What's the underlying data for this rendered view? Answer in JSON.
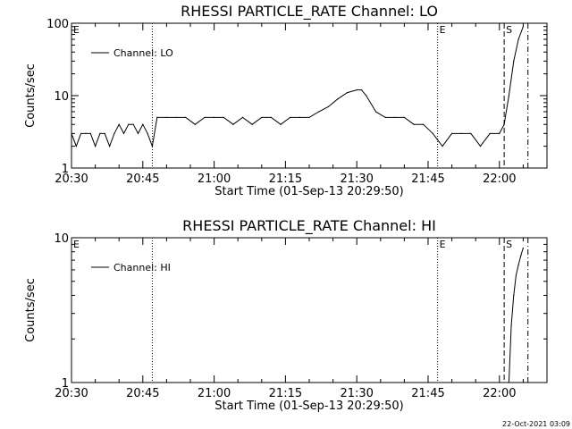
{
  "timestamp": "22-Oct-2021 03:09",
  "chart_data": [
    {
      "type": "line",
      "title": "RHESSI PARTICLE_RATE Channel: LO",
      "xlabel": "Start Time (01-Sep-13 20:29:50)",
      "ylabel": "Counts/sec",
      "yscale": "log",
      "ylim": [
        1,
        100
      ],
      "y_ticks": [
        "1",
        "10",
        "100"
      ],
      "xlim": [
        "20:30",
        "22:10"
      ],
      "x_ticks": [
        "20:30",
        "20:45",
        "21:00",
        "21:15",
        "21:30",
        "21:45",
        "22:00"
      ],
      "legend": {
        "label": "Channel: LO",
        "position": "top-left"
      },
      "markers": [
        {
          "label": "E",
          "time": "20:30",
          "style": "none"
        },
        {
          "label": "",
          "time": "20:47",
          "style": "dotted"
        },
        {
          "label": "E",
          "time": "21:47",
          "style": "dotted"
        },
        {
          "label": "S",
          "time": "22:01",
          "style": "dashed"
        },
        {
          "label": "",
          "time": "22:06",
          "style": "dashdot"
        }
      ],
      "series": [
        {
          "x": [
            "20:30",
            "20:31",
            "20:32",
            "20:33",
            "20:34",
            "20:35",
            "20:36",
            "20:37",
            "20:38",
            "20:39",
            "20:40",
            "20:41",
            "20:42",
            "20:43",
            "20:44",
            "20:45",
            "20:46",
            "20:47",
            "20:48",
            "20:50",
            "20:52",
            "20:54",
            "20:56",
            "20:58",
            "21:00",
            "21:02",
            "21:04",
            "21:06",
            "21:08",
            "21:10",
            "21:12",
            "21:14",
            "21:16",
            "21:18",
            "21:20",
            "21:22",
            "21:24",
            "21:26",
            "21:28",
            "21:30",
            "21:31",
            "21:32",
            "21:34",
            "21:36",
            "21:38",
            "21:40",
            "21:42",
            "21:44",
            "21:46",
            "21:48",
            "21:50",
            "21:52",
            "21:54",
            "21:56",
            "21:58",
            "22:00",
            "22:01",
            "22:02",
            "22:03",
            "22:04",
            "22:05"
          ],
          "y": [
            3,
            2,
            3,
            3,
            3,
            2,
            3,
            3,
            2,
            3,
            4,
            3,
            4,
            4,
            3,
            4,
            3,
            2,
            5,
            5,
            5,
            5,
            4,
            5,
            5,
            5,
            4,
            5,
            4,
            5,
            5,
            4,
            5,
            5,
            5,
            6,
            7,
            9,
            11,
            12,
            12,
            10,
            6,
            5,
            5,
            5,
            4,
            4,
            3,
            2,
            3,
            3,
            3,
            2,
            3,
            3,
            4,
            10,
            30,
            60,
            90
          ]
        }
      ]
    },
    {
      "type": "line",
      "title": "RHESSI PARTICLE_RATE Channel: HI",
      "xlabel": "Start Time (01-Sep-13 20:29:50)",
      "ylabel": "Counts/sec",
      "yscale": "log",
      "ylim": [
        1,
        10
      ],
      "y_ticks": [
        "1",
        "10"
      ],
      "xlim": [
        "20:30",
        "22:10"
      ],
      "x_ticks": [
        "20:30",
        "20:45",
        "21:00",
        "21:15",
        "21:30",
        "21:45",
        "22:00"
      ],
      "legend": {
        "label": "Channel: HI",
        "position": "top-left"
      },
      "markers": [
        {
          "label": "E",
          "time": "20:30",
          "style": "none"
        },
        {
          "label": "",
          "time": "20:47",
          "style": "dotted"
        },
        {
          "label": "E",
          "time": "21:47",
          "style": "dotted"
        },
        {
          "label": "S",
          "time": "22:01",
          "style": "dashed"
        },
        {
          "label": "",
          "time": "22:06",
          "style": "dashdot"
        }
      ],
      "series": [
        {
          "x": [
            "22:02",
            "22:02.5",
            "22:03",
            "22:03.5",
            "22:04",
            "22:04.5",
            "22:05"
          ],
          "y": [
            1,
            2.5,
            4,
            5.5,
            6.5,
            7.5,
            8.5
          ]
        }
      ]
    }
  ]
}
